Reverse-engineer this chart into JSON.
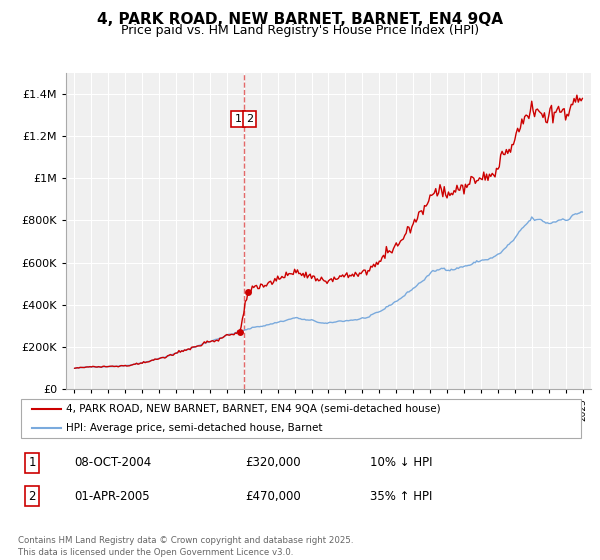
{
  "title": "4, PARK ROAD, NEW BARNET, BARNET, EN4 9QA",
  "subtitle": "Price paid vs. HM Land Registry's House Price Index (HPI)",
  "title_fontsize": 11,
  "subtitle_fontsize": 9,
  "legend_label_red": "4, PARK ROAD, NEW BARNET, BARNET, EN4 9QA (semi-detached house)",
  "legend_label_blue": "HPI: Average price, semi-detached house, Barnet",
  "red_color": "#cc0000",
  "blue_color": "#7aaadd",
  "vline_color": "#dd4444",
  "annotation1_date": "08-OCT-2004",
  "annotation1_price": "£320,000",
  "annotation1_hpi": "10% ↓ HPI",
  "annotation2_date": "01-APR-2005",
  "annotation2_price": "£470,000",
  "annotation2_hpi": "35% ↑ HPI",
  "transaction1_x": 2004.77,
  "transaction2_x": 2005.25,
  "vline_x": 2005.0,
  "ylim_min": 0,
  "ylim_max": 1500000,
  "footnote": "Contains HM Land Registry data © Crown copyright and database right 2025.\nThis data is licensed under the Open Government Licence v3.0.",
  "background_color": "#f0f0f0",
  "grid_color": "#ffffff"
}
